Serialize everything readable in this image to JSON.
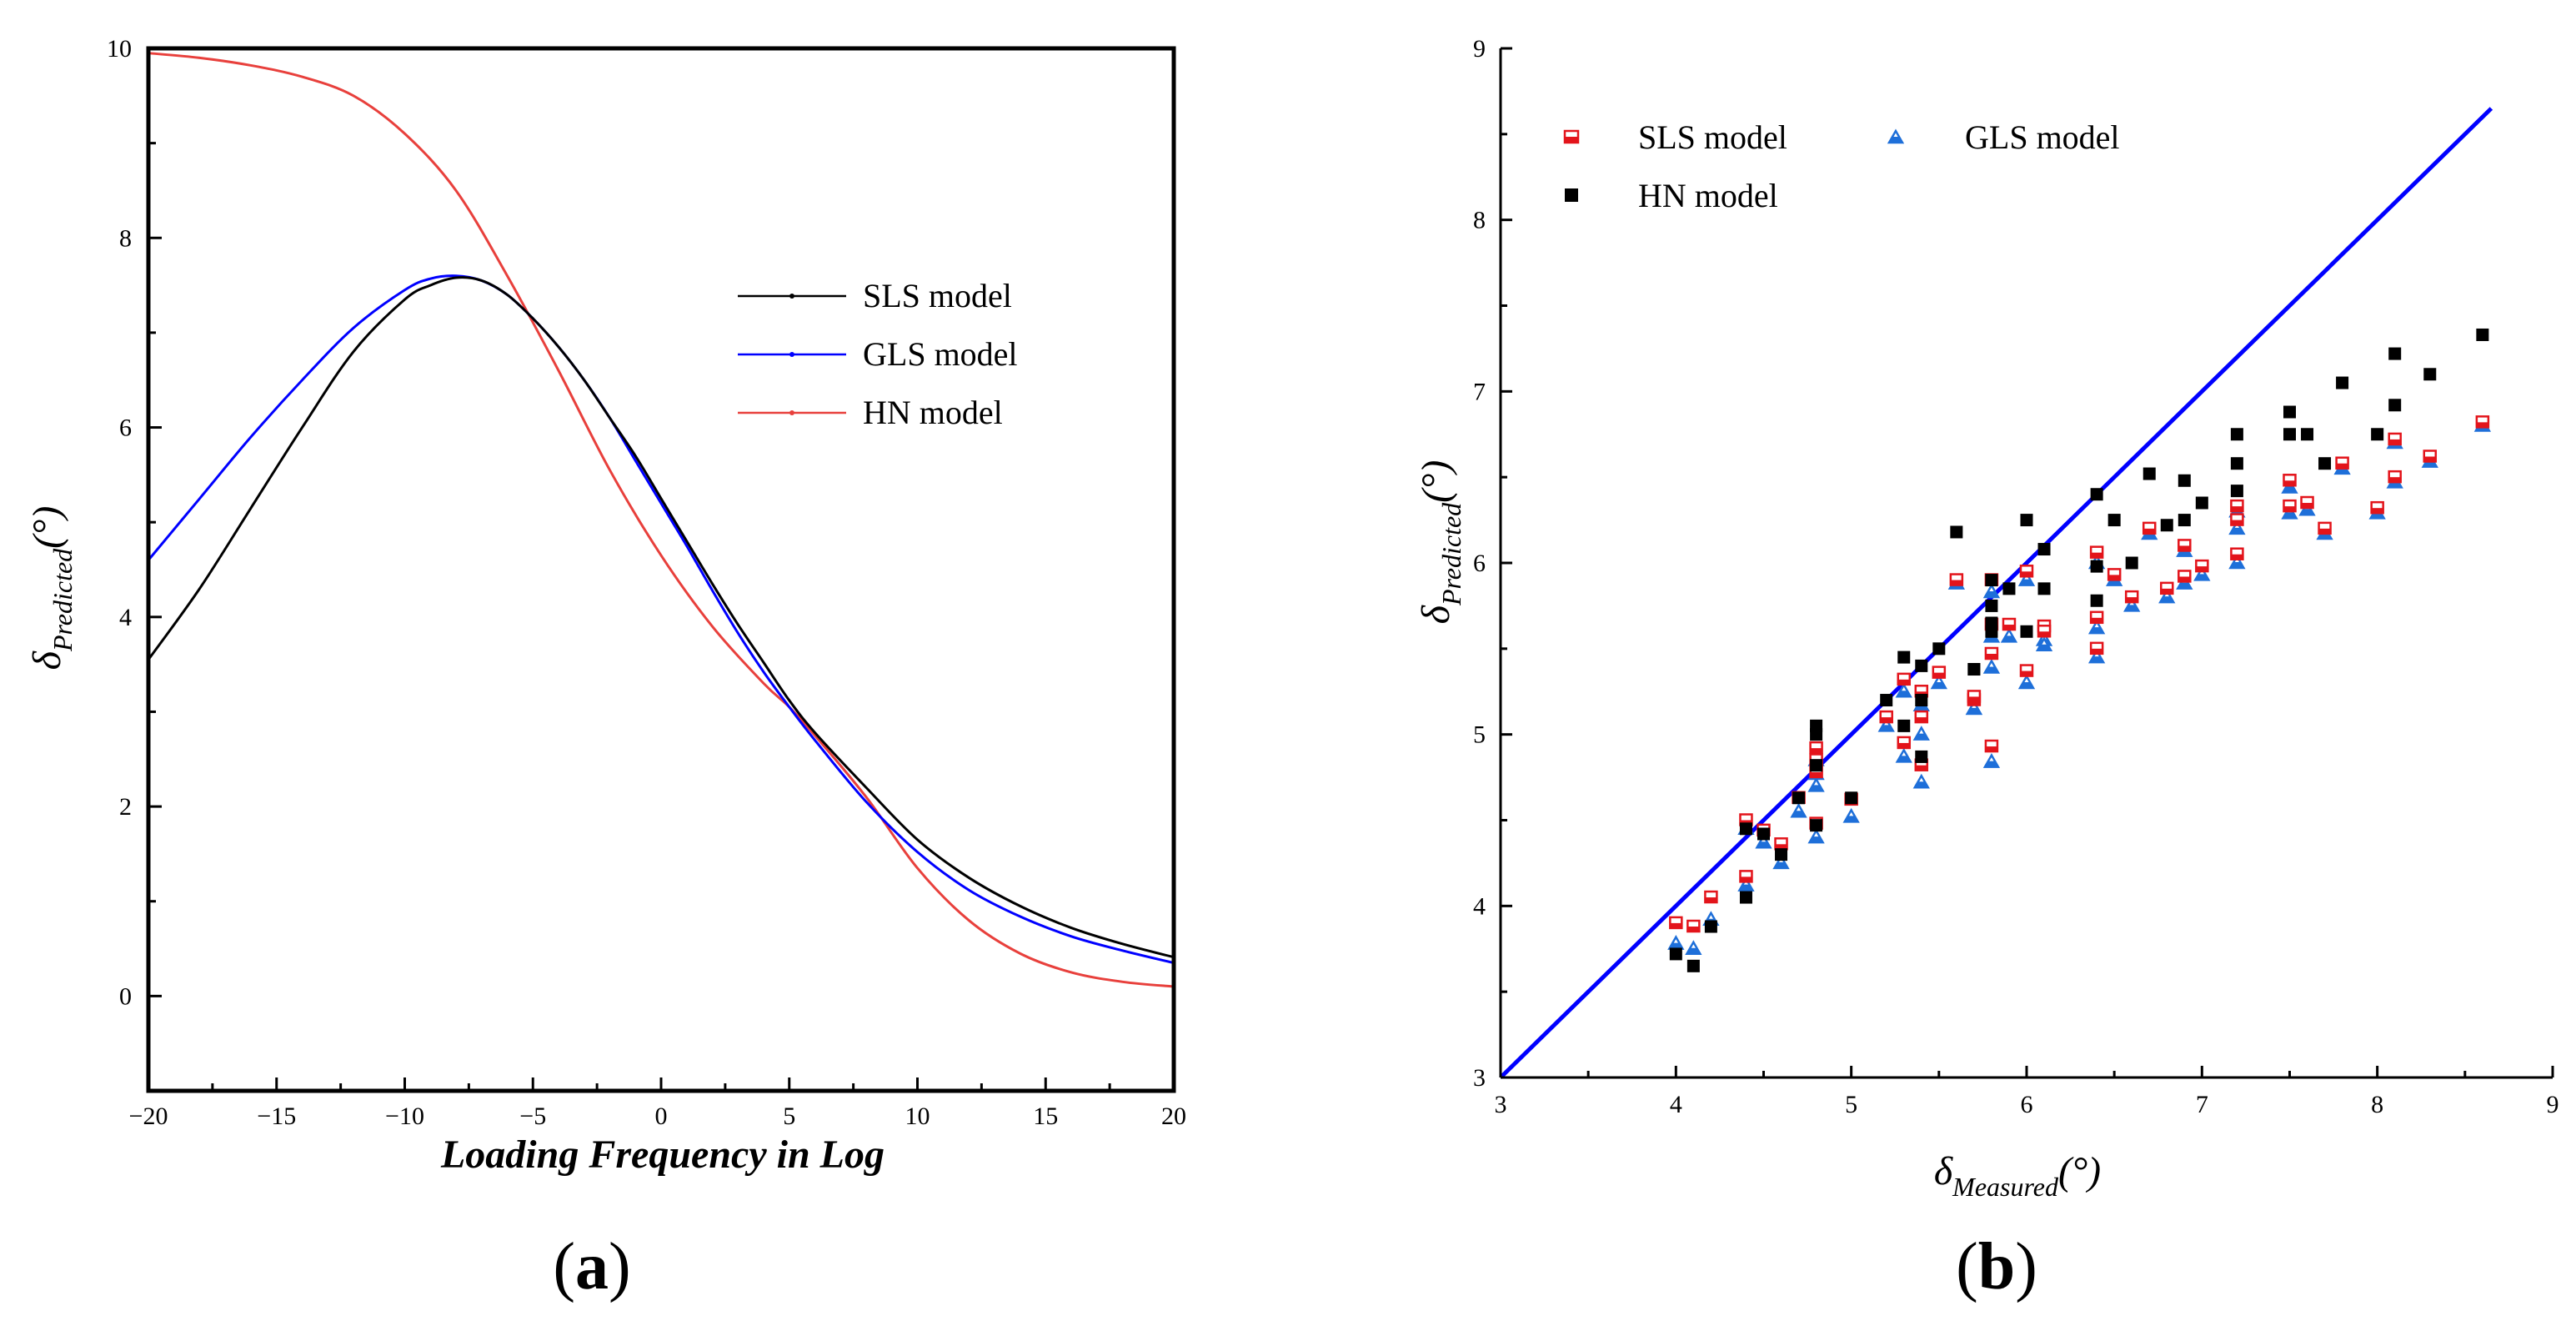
{
  "chart_data": [
    {
      "panel": "(a)",
      "type": "line",
      "title": "",
      "xlabel": "Loading Frequency in Log",
      "ylabel_symbol": "δ",
      "ylabel_subscript": "Predicted",
      "ylabel_unit": "(°)",
      "xlim": [
        -20,
        20
      ],
      "ylim": [
        -1,
        10
      ],
      "xticks": [
        -20,
        -15,
        -10,
        -5,
        0,
        5,
        10,
        15,
        20
      ],
      "xtick_labels": [
        "−20",
        "−15",
        "−10",
        "−5",
        "0",
        "5",
        "10",
        "15",
        "20"
      ],
      "yticks": [
        0,
        2,
        4,
        6,
        8,
        10
      ],
      "ytick_labels": [
        "0",
        "2",
        "4",
        "6",
        "8",
        "10"
      ],
      "legend_position": "center-right",
      "series": [
        {
          "name": "SLS model",
          "color": "#000000",
          "x": [
            -20,
            -18,
            -16,
            -14,
            -12,
            -10,
            -9,
            -8,
            -7,
            -6,
            -5,
            -4,
            -3,
            -2,
            -1,
            0,
            1,
            2,
            3,
            4,
            5,
            6,
            8,
            10,
            12,
            14,
            16,
            18,
            20
          ],
          "y": [
            3.55,
            4.3,
            5.15,
            6.0,
            6.8,
            7.35,
            7.5,
            7.58,
            7.55,
            7.4,
            7.15,
            6.85,
            6.5,
            6.1,
            5.7,
            5.25,
            4.8,
            4.35,
            3.92,
            3.52,
            3.12,
            2.78,
            2.2,
            1.65,
            1.25,
            0.95,
            0.72,
            0.55,
            0.41
          ]
        },
        {
          "name": "GLS model",
          "color": "#0000ff",
          "x": [
            -20,
            -18,
            -16,
            -14,
            -12,
            -10,
            -9,
            -8,
            -7,
            -6,
            -5,
            -4,
            -3,
            -2,
            -1,
            0,
            1,
            2,
            3,
            4,
            5,
            6,
            8,
            10,
            12,
            14,
            16,
            18,
            20
          ],
          "y": [
            4.6,
            5.25,
            5.9,
            6.5,
            7.05,
            7.45,
            7.57,
            7.6,
            7.55,
            7.4,
            7.15,
            6.85,
            6.5,
            6.1,
            5.65,
            5.2,
            4.75,
            4.28,
            3.83,
            3.42,
            3.05,
            2.7,
            2.05,
            1.52,
            1.12,
            0.84,
            0.63,
            0.48,
            0.35
          ]
        },
        {
          "name": "HN model",
          "color": "#e8403c",
          "x": [
            -20,
            -18,
            -16,
            -14,
            -12,
            -10,
            -8,
            -6,
            -4,
            -2,
            0,
            2,
            4,
            5,
            6,
            8,
            10,
            12,
            14,
            16,
            18,
            20
          ],
          "y": [
            9.95,
            9.9,
            9.82,
            9.7,
            9.5,
            9.1,
            8.5,
            7.6,
            6.6,
            5.55,
            4.65,
            3.9,
            3.3,
            3.05,
            2.75,
            2.1,
            1.35,
            0.8,
            0.45,
            0.25,
            0.15,
            0.1
          ]
        }
      ]
    },
    {
      "panel": "(b)",
      "type": "scatter",
      "title": "",
      "xlabel_symbol": "δ",
      "xlabel_subscript": "Measured",
      "xlabel_unit": "(°)",
      "ylabel_symbol": "δ",
      "ylabel_subscript": "Predicted",
      "ylabel_unit": "(°)",
      "xlim": [
        3,
        9
      ],
      "ylim": [
        3,
        9
      ],
      "xticks": [
        3,
        4,
        5,
        6,
        7,
        8,
        9
      ],
      "yticks": [
        3,
        4,
        5,
        6,
        7,
        8,
        9
      ],
      "legend_position": "top-left",
      "reference_line": {
        "color": "#0000ff",
        "x": [
          3,
          8.65
        ],
        "y": [
          3,
          8.65
        ]
      },
      "x": [
        4.0,
        4.1,
        4.2,
        4.4,
        4.4,
        4.5,
        4.6,
        4.7,
        4.8,
        4.8,
        4.8,
        4.8,
        5.0,
        5.2,
        5.3,
        5.3,
        5.4,
        5.4,
        5.4,
        5.5,
        5.6,
        5.7,
        5.7,
        5.8,
        5.8,
        5.8,
        5.8,
        5.9,
        6.0,
        6.0,
        6.1,
        6.1,
        6.4,
        6.4,
        6.4,
        6.5,
        6.6,
        6.7,
        6.8,
        6.9,
        6.9,
        7.0,
        7.2,
        7.2,
        7.2,
        7.5,
        7.5,
        7.6,
        7.7,
        7.8,
        8.0,
        8.1,
        8.1,
        8.3,
        8.6
      ],
      "series": [
        {
          "name": "SLS model",
          "marker": "half-filled square",
          "color": "#e3141b",
          "y": [
            3.9,
            3.88,
            4.05,
            4.5,
            4.17,
            4.44,
            4.36,
            4.63,
            4.78,
            4.92,
            4.48,
            4.85,
            4.62,
            5.1,
            5.32,
            4.95,
            5.1,
            4.82,
            5.25,
            5.36,
            5.9,
            5.2,
            5.22,
            5.47,
            4.93,
            5.64,
            5.9,
            5.64,
            5.37,
            5.95,
            5.63,
            5.6,
            6.06,
            5.68,
            5.5,
            5.93,
            5.8,
            6.2,
            5.85,
            6.1,
            5.92,
            5.98,
            6.33,
            6.05,
            6.25,
            6.48,
            6.33,
            6.35,
            6.2,
            6.58,
            6.32,
            6.72,
            6.5,
            6.62,
            6.82
          ]
        },
        {
          "name": "GLS model",
          "marker": "half-filled triangle",
          "color": "#1e6fd9",
          "y": [
            3.78,
            3.75,
            3.92,
            4.45,
            4.12,
            4.37,
            4.25,
            4.55,
            4.7,
            4.85,
            4.4,
            4.77,
            4.52,
            5.05,
            5.25,
            4.87,
            5.0,
            4.72,
            5.17,
            5.3,
            5.88,
            5.15,
            5.15,
            5.39,
            4.84,
            5.57,
            5.83,
            5.57,
            5.3,
            5.9,
            5.55,
            5.52,
            6.0,
            5.62,
            5.45,
            5.9,
            5.75,
            6.17,
            5.8,
            6.07,
            5.88,
            5.93,
            6.3,
            6.0,
            6.2,
            6.44,
            6.29,
            6.31,
            6.17,
            6.55,
            6.29,
            6.7,
            6.47,
            6.59,
            6.8
          ]
        },
        {
          "name": "HN model",
          "marker": "filled square",
          "color": "#000000",
          "y": [
            3.72,
            3.65,
            3.88,
            4.45,
            4.05,
            4.42,
            4.3,
            4.63,
            5.05,
            5.0,
            4.47,
            4.82,
            4.63,
            5.2,
            5.45,
            5.05,
            5.4,
            4.87,
            5.2,
            5.5,
            6.18,
            5.38,
            5.38,
            5.75,
            5.65,
            5.6,
            5.9,
            5.85,
            6.25,
            5.6,
            5.85,
            6.08,
            6.4,
            5.78,
            5.98,
            6.25,
            6.0,
            6.52,
            6.22,
            6.48,
            6.25,
            6.35,
            6.58,
            6.42,
            6.75,
            6.88,
            6.75,
            6.75,
            6.58,
            7.05,
            6.75,
            7.22,
            6.92,
            7.1,
            7.33
          ]
        }
      ]
    }
  ],
  "panel_a": {
    "label_open": "(",
    "label_letter": "a",
    "label_close": ")"
  },
  "panel_b": {
    "label_open": "(",
    "label_letter": "b",
    "label_close": ")"
  },
  "legend_a": {
    "items": [
      "SLS model",
      "GLS model",
      "HN model"
    ]
  },
  "legend_b": {
    "items": [
      "SLS model",
      "GLS model",
      "HN model"
    ]
  }
}
